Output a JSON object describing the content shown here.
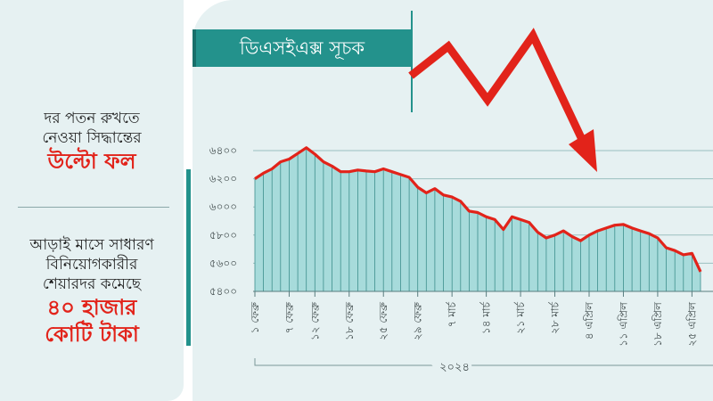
{
  "left_panel": {
    "line1": "দর পতন রুখতে",
    "line2": "নেওয়া সিদ্ধান্তের",
    "line3": "উল্টো ফল",
    "line4": "আড়াই মাসে সাধারণ",
    "line5": "বিনিয়োগকারীর",
    "line6": "শেয়ারদর কমেছে",
    "line7": "৪০ হাজার",
    "line8": "কোটি টাকা"
  },
  "colors": {
    "teal": "#23928c",
    "area_fill": "#a7dbdb",
    "grid": "#9bbfc0",
    "red": "#e2231a",
    "background": "#e6f1f2"
  },
  "chart_data": {
    "type": "area",
    "title": "ডিএসইএক্স সূচক",
    "year_label": "২০২৪",
    "ylim": [
      5400,
      6400
    ],
    "yticks": [
      6400,
      6200,
      6000,
      5800,
      5600,
      5400
    ],
    "ytick_labels": [
      "৬৪০০",
      "৬২০০",
      "৬০০০",
      "৫৮০০",
      "৫৬০০",
      "৫৪০০"
    ],
    "xtick_labels": [
      {
        "index": 0,
        "label": "১ ফেব্রু"
      },
      {
        "index": 4,
        "label": "৭ ফেব্রু"
      },
      {
        "index": 7,
        "label": "১২ ফেব্রু"
      },
      {
        "index": 11,
        "label": "১৮ ফেব্রু"
      },
      {
        "index": 15,
        "label": "২৫ ফেব্রু"
      },
      {
        "index": 19,
        "label": "২৯ ফেব্রু"
      },
      {
        "index": 23,
        "label": "৭ মার্চ"
      },
      {
        "index": 27,
        "label": "১৪ মার্চ"
      },
      {
        "index": 31,
        "label": "২১ মার্চ"
      },
      {
        "index": 35,
        "label": "২৮ মার্চ"
      },
      {
        "index": 39,
        "label": "৪ এপ্রিল"
      },
      {
        "index": 43,
        "label": "১১ এপ্রিল"
      },
      {
        "index": 47,
        "label": "১৮ এপ্রিল"
      },
      {
        "index": 51,
        "label": "২৫ এপ্রিল"
      }
    ],
    "series": [
      {
        "values": [
          6200,
          6240,
          6270,
          6320,
          6340,
          6380,
          6420,
          6375,
          6320,
          6290,
          6250,
          6250,
          6262,
          6255,
          6250,
          6270,
          6250,
          6230,
          6210,
          6140,
          6100,
          6130,
          6085,
          6070,
          6040,
          5970,
          5960,
          5930,
          5910,
          5840,
          5930,
          5910,
          5890,
          5820,
          5780,
          5800,
          5830,
          5790,
          5760,
          5800,
          5830,
          5850,
          5870,
          5875,
          5850,
          5830,
          5810,
          5780,
          5710,
          5690,
          5660,
          5670,
          5540
        ]
      }
    ]
  }
}
